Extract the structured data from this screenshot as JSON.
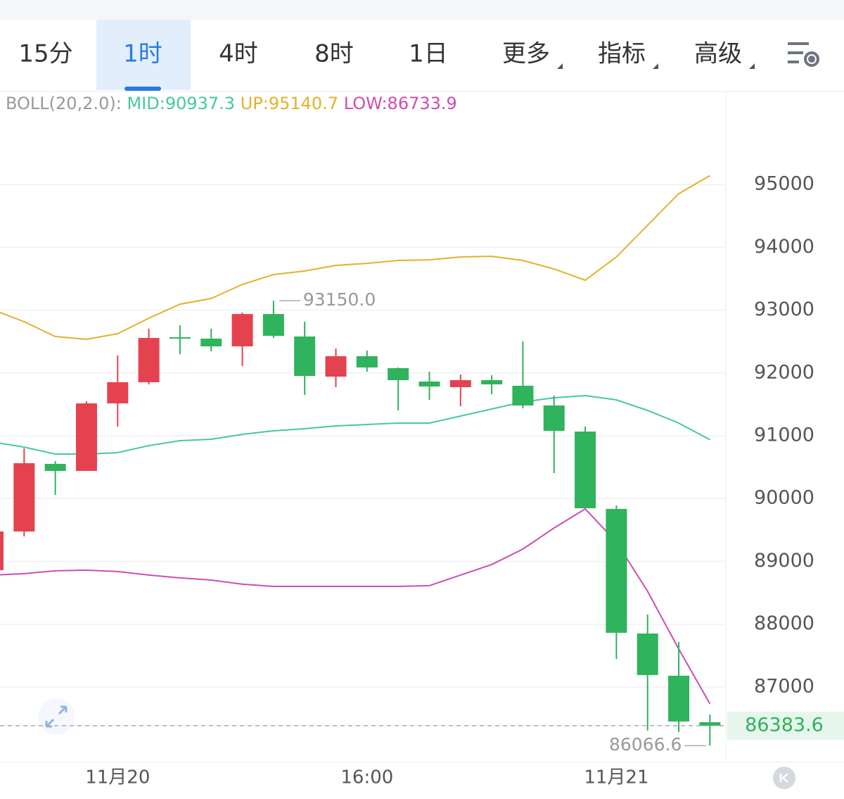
{
  "tabs": [
    {
      "label": "15分"
    },
    {
      "label": "1时",
      "active": true
    },
    {
      "label": "4时"
    },
    {
      "label": "8时"
    },
    {
      "label": "1日"
    },
    {
      "label": "更多",
      "dropdown": true
    },
    {
      "label": "指标",
      "dropdown": true
    },
    {
      "label": "高级",
      "dropdown": true
    }
  ],
  "chart_data": {
    "type": "candlestick",
    "indicator_label": "BOLL(20,2.0):",
    "categories": [
      null,
      null,
      null,
      null,
      "11月20",
      null,
      null,
      null,
      null,
      null,
      null,
      null,
      "16:00",
      null,
      null,
      null,
      null,
      null,
      null,
      null,
      "11月21",
      null,
      null,
      null
    ],
    "open": [
      88860,
      89476,
      90552,
      90440,
      91515,
      91852,
      92568,
      92546,
      92423,
      92938,
      92580,
      91941,
      92266,
      92076,
      91863,
      91773,
      91885,
      91796,
      91482,
      91067,
      89835,
      87852,
      87180,
      86440
    ],
    "high": [
      89476,
      90798,
      90597,
      91549,
      92277,
      92703,
      92759,
      92703,
      92961,
      93150,
      92815,
      92389,
      92356,
      92087,
      92020,
      91975,
      91964,
      92501,
      91639,
      91146,
      89891,
      88154,
      87717,
      86563
    ],
    "low": [
      88860,
      89398,
      90059,
      90440,
      91146,
      91818,
      92300,
      92345,
      92109,
      92557,
      91650,
      91773,
      92020,
      91403,
      91572,
      91471,
      91661,
      91437,
      90406,
      89846,
      87448,
      86306,
      86283,
      86066.6
    ],
    "close": [
      89476,
      90563,
      90440,
      91515,
      91852,
      92557,
      92546,
      92423,
      92938,
      92591,
      91952,
      92266,
      92087,
      91885,
      91784,
      91885,
      91818,
      91482,
      91078,
      89846,
      87863,
      87191,
      86451,
      86383.6
    ],
    "up_color": "#e5424f",
    "down_color": "#2fb35c",
    "series": [
      {
        "name": "MID:90937.3",
        "color": "#45c9a2",
        "values": [
          90899,
          90820,
          90709,
          90709,
          90731,
          90843,
          90922,
          90944,
          91022,
          91078,
          91112,
          91157,
          91179,
          91202,
          91202,
          91314,
          91426,
          91538,
          91605,
          91639,
          91572,
          91403,
          91202,
          90937.3
        ]
      },
      {
        "name": "UP:95140.7",
        "color": "#e3b12c",
        "values": [
          93006,
          92815,
          92580,
          92535,
          92625,
          92871,
          93095,
          93185,
          93409,
          93566,
          93622,
          93712,
          93745,
          93790,
          93801,
          93846,
          93857,
          93790,
          93655,
          93476,
          93846,
          94350,
          94854,
          95140.7
        ]
      },
      {
        "name": "LOW:86733.9",
        "color": "#cf4db0",
        "values": [
          88782,
          88804,
          88849,
          88860,
          88838,
          88782,
          88737,
          88703,
          88636,
          88602,
          88602,
          88602,
          88602,
          88602,
          88614,
          88782,
          88950,
          89196,
          89532,
          89835,
          89308,
          88524,
          87605,
          86733.9
        ]
      }
    ],
    "high_marker": {
      "value": 93150,
      "label": "93150.0"
    },
    "low_marker": 86066.6,
    "last_price": 86383.6,
    "ylim": [
      85800,
      96480
    ],
    "yticks": [
      87000,
      88000,
      89000,
      90000,
      91000,
      92000,
      93000,
      94000,
      95000
    ],
    "grid": true
  }
}
